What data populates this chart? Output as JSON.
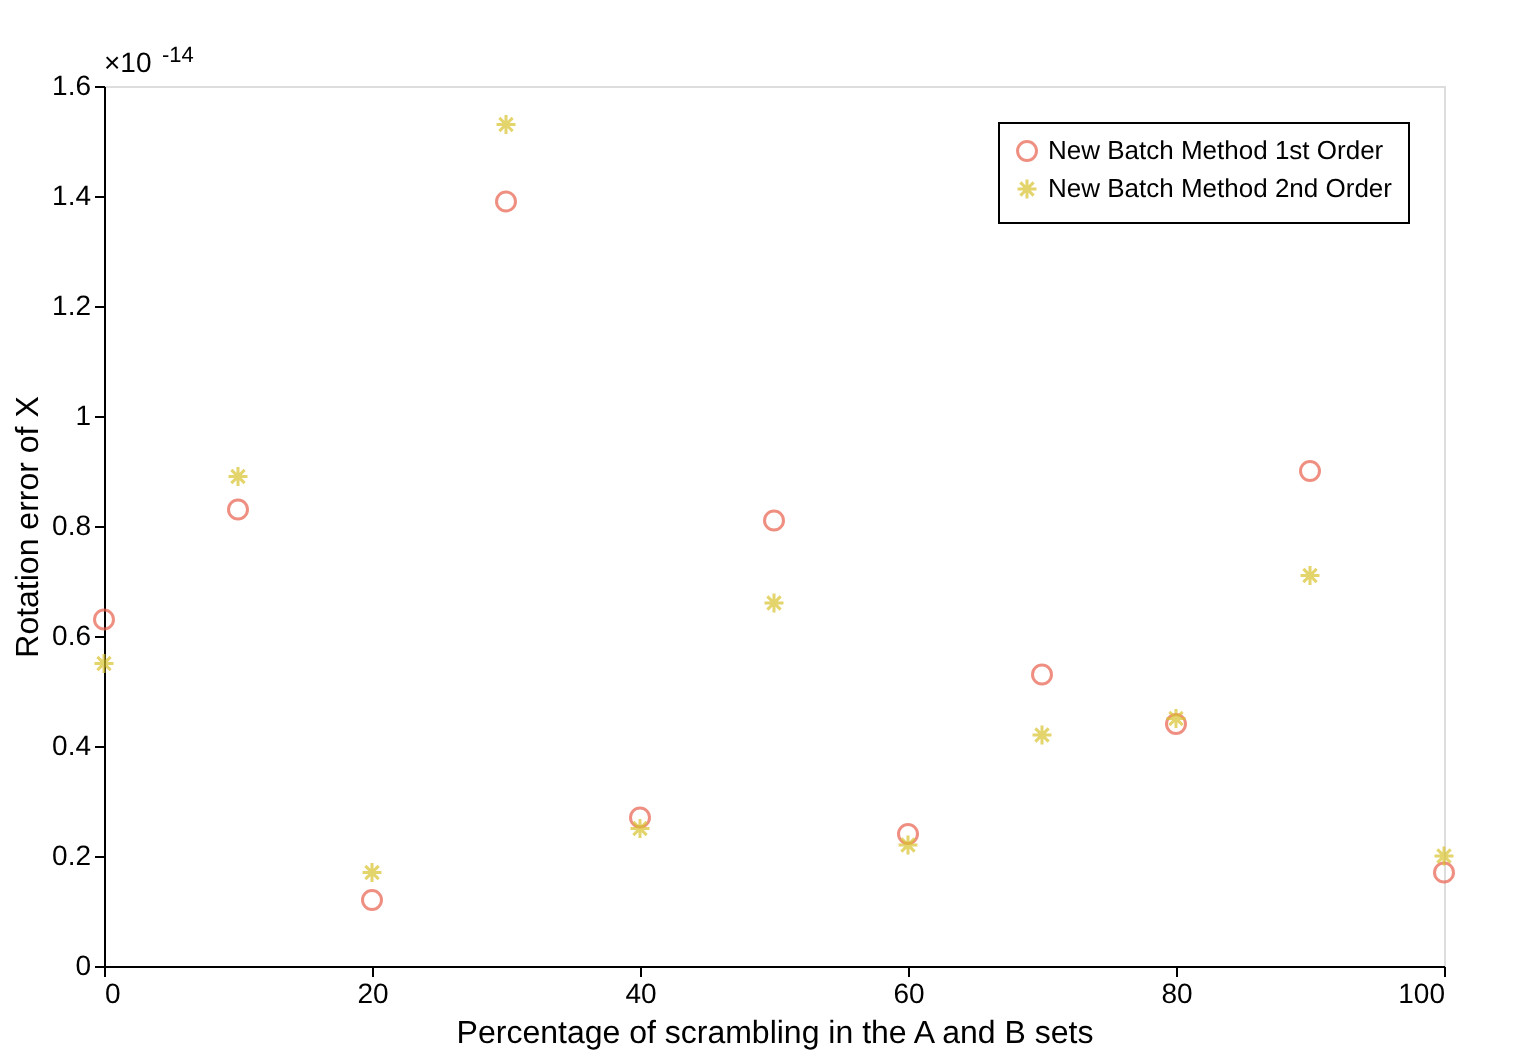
{
  "chart_data": {
    "type": "scatter",
    "xlabel": "Percentage of scrambling in the A and B sets",
    "ylabel": "Rotation error of X",
    "x": [
      0,
      10,
      20,
      30,
      40,
      50,
      60,
      70,
      80,
      90,
      100
    ],
    "series": [
      {
        "name": "New Batch Method 1st Order",
        "color": "#e8604c",
        "marker": "circle",
        "values": [
          0.63,
          0.83,
          0.12,
          1.39,
          0.27,
          0.81,
          0.24,
          0.53,
          0.44,
          0.9,
          0.17
        ]
      },
      {
        "name": "New Batch Method 2nd Order",
        "color": "#d9c22e",
        "marker": "cross",
        "values": [
          0.55,
          0.89,
          0.17,
          1.53,
          0.25,
          0.66,
          0.22,
          0.42,
          0.45,
          0.71,
          0.2
        ]
      }
    ],
    "xlim": [
      0,
      100
    ],
    "xticks": [
      0,
      20,
      40,
      60,
      80,
      100
    ],
    "ylim": [
      0,
      1.6
    ],
    "yticks": [
      0,
      0.2,
      0.4,
      0.6,
      0.8,
      1,
      1.2,
      1.4,
      1.6
    ],
    "annotations": [
      "×10$^{-14}$"
    ],
    "grid": false,
    "legend": "top right"
  }
}
